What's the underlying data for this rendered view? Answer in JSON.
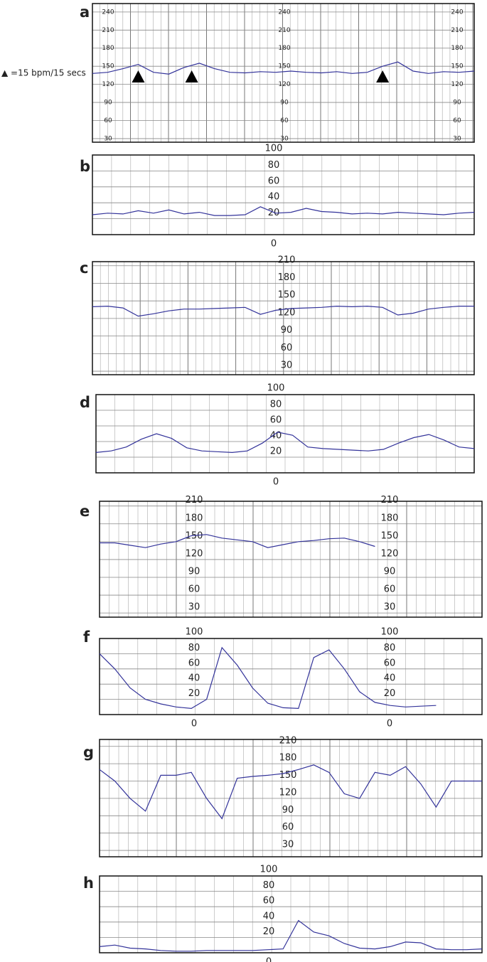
{
  "chart_data": [
    {
      "type": "line",
      "label": "a",
      "annotation": "▲ =15 bpm/15 secs",
      "x": [
        0,
        4,
        8,
        12,
        16,
        20,
        24,
        28,
        32,
        36,
        40,
        44,
        48,
        52,
        56,
        60,
        64,
        68,
        72,
        76,
        80,
        84,
        88,
        92,
        96,
        100
      ],
      "xlim": [
        0,
        100
      ],
      "ylim": [
        24,
        254
      ],
      "yticks": [
        30,
        60,
        90,
        120,
        150,
        180,
        210,
        240
      ],
      "markers_x": [
        12,
        26,
        76
      ],
      "series": [
        {
          "color": "#33339a",
          "values": [
            138,
            140,
            146,
            153,
            140,
            137,
            148,
            155,
            146,
            140,
            139,
            141,
            140,
            142,
            140,
            139,
            141,
            138,
            140,
            150,
            157,
            142,
            138,
            141,
            140,
            142
          ]
        }
      ]
    },
    {
      "type": "line",
      "label": "b",
      "x": [
        0,
        4,
        8,
        12,
        16,
        20,
        24,
        28,
        32,
        36,
        40,
        44,
        48,
        52,
        56,
        60,
        64,
        68,
        72,
        76,
        80,
        84,
        88,
        92,
        96,
        100
      ],
      "xlim": [
        0,
        100
      ],
      "ylim": [
        0,
        100
      ],
      "yticks": [
        0,
        20,
        40,
        60,
        80,
        100
      ],
      "series": [
        {
          "color": "#33339a",
          "values": [
            25,
            27,
            26,
            30,
            27,
            31,
            26,
            28,
            24,
            24,
            25,
            35,
            27,
            28,
            33,
            29,
            28,
            26,
            27,
            26,
            28,
            27,
            26,
            25,
            27,
            28
          ]
        }
      ]
    },
    {
      "type": "line",
      "label": "c",
      "x": [
        0,
        4,
        8,
        12,
        16,
        20,
        24,
        28,
        32,
        36,
        40,
        44,
        48,
        52,
        56,
        60,
        64,
        68,
        72,
        76,
        80,
        84,
        88,
        92,
        96,
        100
      ],
      "xlim": [
        0,
        100
      ],
      "ylim": [
        24,
        217
      ],
      "yticks": [
        30,
        60,
        90,
        120,
        150,
        180,
        210
      ],
      "series": [
        {
          "color": "#33339a",
          "values": [
            140,
            141,
            138,
            124,
            128,
            133,
            136,
            136,
            137,
            138,
            139,
            127,
            134,
            137,
            138,
            139,
            141,
            140,
            141,
            139,
            126,
            129,
            136,
            139,
            141,
            141
          ]
        }
      ]
    },
    {
      "type": "line",
      "label": "d",
      "x": [
        0,
        4,
        8,
        12,
        16,
        20,
        24,
        28,
        32,
        36,
        40,
        44,
        48,
        52,
        56,
        60,
        64,
        68,
        72,
        76,
        80,
        84,
        88,
        92,
        96,
        100
      ],
      "xlim": [
        0,
        100
      ],
      "ylim": [
        0,
        100
      ],
      "yticks": [
        0,
        20,
        40,
        60,
        80,
        100
      ],
      "series": [
        {
          "color": "#33339a",
          "values": [
            26,
            28,
            33,
            43,
            50,
            44,
            32,
            28,
            27,
            26,
            28,
            38,
            52,
            48,
            33,
            31,
            30,
            29,
            28,
            30,
            38,
            45,
            49,
            42,
            33,
            31
          ]
        }
      ]
    },
    {
      "type": "line",
      "label": "e",
      "x": [
        0,
        4,
        8,
        12,
        16,
        20,
        24,
        28,
        32,
        36,
        40,
        44,
        48,
        52,
        56,
        60,
        64,
        68,
        72,
        76,
        80,
        84,
        88,
        92,
        96,
        100
      ],
      "xlim": [
        0,
        100
      ],
      "ylim": [
        23,
        218
      ],
      "yticks": [
        30,
        60,
        90,
        120,
        150,
        180,
        210
      ],
      "series": [
        {
          "color": "#33339a",
          "values": [
            148,
            148,
            144,
            140,
            146,
            150,
            160,
            162,
            156,
            153,
            150,
            140,
            145,
            150,
            152,
            155,
            156,
            150,
            142,
            null,
            null,
            null,
            null,
            null,
            null,
            null
          ]
        }
      ]
    },
    {
      "type": "line",
      "label": "f",
      "x": [
        0,
        4,
        8,
        12,
        16,
        20,
        24,
        28,
        32,
        36,
        40,
        44,
        48,
        52,
        56,
        60,
        64,
        68,
        72,
        76,
        80,
        84,
        88,
        92,
        96,
        100
      ],
      "xlim": [
        0,
        100
      ],
      "ylim": [
        0,
        100
      ],
      "yticks": [
        0,
        20,
        40,
        60,
        80,
        100
      ],
      "series": [
        {
          "color": "#33339a",
          "values": [
            80,
            60,
            35,
            20,
            14,
            10,
            8,
            20,
            88,
            65,
            35,
            15,
            9,
            8,
            75,
            85,
            60,
            30,
            16,
            12,
            10,
            11,
            12,
            null,
            null,
            null
          ]
        }
      ]
    },
    {
      "type": "line",
      "label": "g",
      "x": [
        0,
        4,
        8,
        12,
        16,
        20,
        24,
        28,
        32,
        36,
        40,
        44,
        48,
        52,
        56,
        60,
        64,
        68,
        72,
        76,
        80,
        84,
        88,
        92,
        96,
        100
      ],
      "xlim": [
        0,
        100
      ],
      "ylim": [
        19,
        222
      ],
      "yticks": [
        30,
        60,
        90,
        120,
        150,
        180,
        210
      ],
      "series": [
        {
          "color": "#33339a",
          "values": [
            170,
            150,
            120,
            98,
            160,
            160,
            165,
            120,
            85,
            155,
            158,
            160,
            163,
            170,
            178,
            165,
            128,
            120,
            165,
            160,
            175,
            145,
            105,
            150,
            150,
            150
          ]
        }
      ]
    },
    {
      "type": "line",
      "label": "h",
      "x": [
        0,
        4,
        8,
        12,
        16,
        20,
        24,
        28,
        32,
        36,
        40,
        44,
        48,
        52,
        56,
        60,
        64,
        68,
        72,
        76,
        80,
        84,
        88,
        92,
        96,
        100
      ],
      "xlim": [
        0,
        100
      ],
      "ylim": [
        0,
        100
      ],
      "yticks": [
        0,
        20,
        40,
        60,
        80,
        100
      ],
      "series": [
        {
          "color": "#33339a",
          "values": [
            8,
            10,
            6,
            5,
            3,
            2,
            2,
            3,
            3,
            3,
            3,
            4,
            5,
            42,
            27,
            22,
            12,
            6,
            5,
            8,
            14,
            13,
            5,
            4,
            4,
            5
          ]
        }
      ]
    }
  ]
}
